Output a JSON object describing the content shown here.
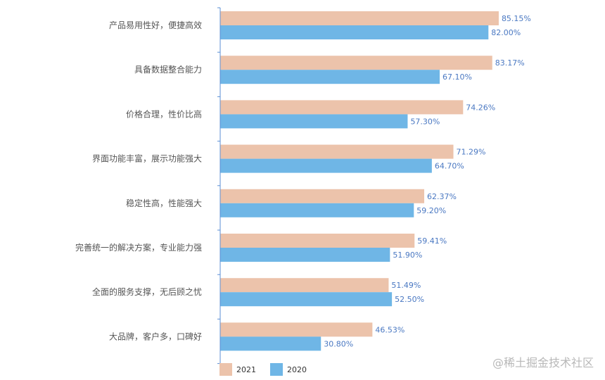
{
  "chart_data": {
    "type": "bar",
    "orientation": "horizontal",
    "categories": [
      "产品易用性好，便捷高效",
      "具备数据整合能力",
      "价格合理，性价比高",
      "界面功能丰富，展示功能强大",
      "稳定性高，性能强大",
      "完善统一的解决方案，专业能力强",
      "全面的服务支撑，无后顾之忧",
      "大品牌，客户多，口碑好"
    ],
    "series": [
      {
        "name": "2021",
        "values": [
          85.15,
          83.17,
          74.26,
          71.29,
          62.37,
          59.41,
          51.49,
          46.53
        ],
        "labels": [
          "85.15%",
          "83.17%",
          "74.26%",
          "71.29%",
          "62.37%",
          "59.41%",
          "51.49%",
          "46.53%"
        ],
        "color": "#ecc3ab"
      },
      {
        "name": "2020",
        "values": [
          82.0,
          67.1,
          57.3,
          64.7,
          59.2,
          51.9,
          52.5,
          30.8
        ],
        "labels": [
          "82.00%",
          "67.10%",
          "57.30%",
          "64.70%",
          "59.20%",
          "51.90%",
          "52.50%",
          "30.80%"
        ],
        "color": "#6fb6e6"
      }
    ],
    "xlim": [
      0,
      100
    ],
    "legend": "bottom",
    "grid": false,
    "title": "",
    "xlabel": "",
    "ylabel": ""
  },
  "watermark": "@稀土掘金技术社区",
  "colors": {
    "axis": "#5b8fd6",
    "label_text": "#4a78c2"
  }
}
